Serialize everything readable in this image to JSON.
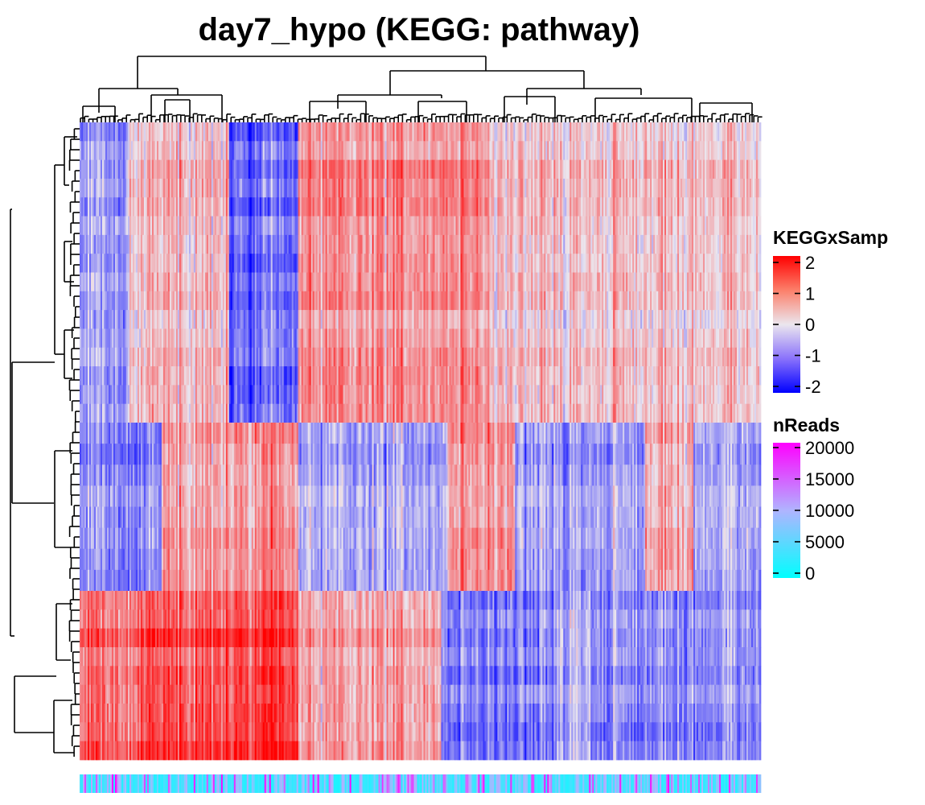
{
  "chart_data": {
    "type": "heatmap",
    "title": "day7_hypo (KEGG: pathway)",
    "value_legend": {
      "title": "KEGGxSamp",
      "ticks": [
        2,
        1,
        0,
        -1,
        -2
      ],
      "range": [
        -2,
        2
      ],
      "colors": {
        "low": "#0000ff",
        "mid": "#ebe6ee",
        "high": "#ff0000"
      }
    },
    "annotation_legend": {
      "title": "nReads",
      "ticks": [
        20000,
        15000,
        10000,
        5000,
        0
      ],
      "range": [
        0,
        20000
      ],
      "colors": {
        "low": "#00ffff",
        "mid": "#b0b4ff",
        "high": "#ff00ff"
      }
    },
    "row_dendrogram": true,
    "column_dendrogram": true,
    "row_blocks": [
      {
        "rows": 16,
        "column_groups": [
          -0.7,
          0.4,
          -1.2,
          0.8,
          0.3
        ]
      },
      {
        "rows": 8,
        "column_groups": [
          -0.8,
          0.6,
          -0.5,
          0.7,
          -0.6,
          0.5,
          -0.5
        ]
      },
      {
        "rows": 9,
        "column_groups": [
          1.0,
          1.3,
          0.6,
          -0.9,
          -0.4,
          -0.8,
          -0.7
        ]
      }
    ]
  }
}
